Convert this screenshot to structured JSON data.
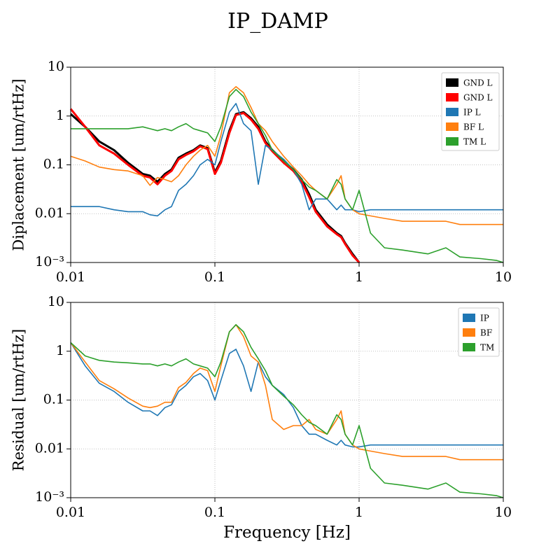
{
  "chart_data": [
    {
      "type": "line",
      "title": "IP_DAMP",
      "ylabel": "Diplacement [um/rtHz]",
      "xscale": "log",
      "yscale": "log",
      "grid": true,
      "legend": "upper right",
      "xlim": [
        0.01,
        10
      ],
      "ylim": [
        0.001,
        10
      ],
      "xticks": [
        0.01,
        0.1,
        1,
        10
      ],
      "yticks": [
        {
          "value": 0.001,
          "label": "10⁻³"
        },
        0.01,
        0.1,
        1,
        10
      ],
      "x": [
        0.01,
        0.0126,
        0.0158,
        0.02,
        0.025,
        0.0316,
        0.0355,
        0.04,
        0.045,
        0.05,
        0.056,
        0.063,
        0.071,
        0.079,
        0.089,
        0.1,
        0.11,
        0.126,
        0.14,
        0.158,
        0.178,
        0.2,
        0.224,
        0.25,
        0.3,
        0.35,
        0.4,
        0.45,
        0.5,
        0.6,
        0.7,
        0.75,
        0.8,
        0.9,
        1,
        1.2,
        1.5,
        2,
        3,
        4,
        5,
        7,
        9,
        10
      ],
      "series": [
        {
          "name": "GND L",
          "color": "#000000",
          "values": [
            1.1,
            0.6,
            0.3,
            0.2,
            0.11,
            0.065,
            0.06,
            0.045,
            0.065,
            0.08,
            0.14,
            0.17,
            0.2,
            0.25,
            0.22,
            0.07,
            0.12,
            0.5,
            1.1,
            1.2,
            0.9,
            0.6,
            0.3,
            0.2,
            0.12,
            0.08,
            0.05,
            0.025,
            0.012,
            0.006,
            0.004,
            0.0035,
            0.0025,
            0.0015,
            0.001,
            null,
            null,
            null,
            null,
            null,
            null,
            null,
            null,
            null
          ]
        },
        {
          "name": "GND L",
          "color": "#ff0000",
          "values": [
            1.4,
            0.6,
            0.25,
            0.17,
            0.1,
            0.06,
            0.055,
            0.04,
            0.06,
            0.075,
            0.13,
            0.16,
            0.19,
            0.24,
            0.21,
            0.065,
            0.11,
            0.45,
            1.05,
            1.15,
            0.85,
            0.55,
            0.28,
            0.19,
            0.11,
            0.075,
            0.045,
            0.022,
            0.011,
            0.0055,
            0.0038,
            0.0033,
            0.0024,
            0.0014,
            0.001,
            null,
            null,
            null,
            null,
            null,
            null,
            null,
            null,
            null
          ]
        },
        {
          "name": "IP L",
          "color": "#1f77b4",
          "values": [
            0.014,
            0.014,
            0.014,
            0.012,
            0.011,
            0.011,
            0.0095,
            0.009,
            0.012,
            0.014,
            0.03,
            0.04,
            0.06,
            0.1,
            0.13,
            0.1,
            0.3,
            1.2,
            1.8,
            0.7,
            0.5,
            0.04,
            0.25,
            0.2,
            0.13,
            0.08,
            0.04,
            0.012,
            0.02,
            0.02,
            0.012,
            0.015,
            0.012,
            0.012,
            0.011,
            0.012,
            0.012,
            0.012,
            0.012,
            0.012,
            0.012,
            0.012,
            0.012,
            0.012
          ]
        },
        {
          "name": "BF L",
          "color": "#ff7f0e",
          "values": [
            0.15,
            0.12,
            0.09,
            0.08,
            0.075,
            0.06,
            0.038,
            0.055,
            0.05,
            0.045,
            0.06,
            0.1,
            0.15,
            0.2,
            0.25,
            0.15,
            0.4,
            3,
            4,
            3,
            1.5,
            0.7,
            0.5,
            0.3,
            0.15,
            0.09,
            0.06,
            0.04,
            0.03,
            0.02,
            0.04,
            0.06,
            0.02,
            0.012,
            0.01,
            0.009,
            0.008,
            0.007,
            0.007,
            0.007,
            0.006,
            0.006,
            0.006,
            0.006
          ]
        },
        {
          "name": "TM L",
          "color": "#2ca02c",
          "values": [
            0.55,
            0.55,
            0.55,
            0.55,
            0.55,
            0.6,
            0.55,
            0.5,
            0.55,
            0.5,
            0.6,
            0.7,
            0.55,
            0.5,
            0.45,
            0.3,
            0.6,
            2.5,
            3.5,
            2.5,
            1.2,
            0.7,
            0.4,
            0.2,
            0.12,
            0.08,
            0.05,
            0.035,
            0.03,
            0.02,
            0.05,
            0.04,
            0.02,
            0.012,
            0.03,
            0.004,
            0.002,
            0.0018,
            0.0015,
            0.002,
            0.0013,
            0.0012,
            0.0011,
            0.001
          ]
        }
      ]
    },
    {
      "type": "line",
      "ylabel": "Residual [um/rtHz]",
      "xlabel": "Frequency [Hz]",
      "xscale": "log",
      "yscale": "log",
      "grid": true,
      "legend": "upper right",
      "xlim": [
        0.01,
        10
      ],
      "ylim": [
        0.001,
        10
      ],
      "xticks": [
        0.01,
        0.1,
        1,
        10
      ],
      "yticks": [
        {
          "value": 0.001,
          "label": "10⁻³"
        },
        0.01,
        0.1,
        1,
        10
      ],
      "x": [
        0.01,
        0.0126,
        0.0158,
        0.02,
        0.025,
        0.0316,
        0.0355,
        0.04,
        0.045,
        0.05,
        0.056,
        0.063,
        0.071,
        0.079,
        0.089,
        0.1,
        0.11,
        0.126,
        0.14,
        0.158,
        0.178,
        0.2,
        0.224,
        0.25,
        0.3,
        0.35,
        0.4,
        0.45,
        0.5,
        0.6,
        0.7,
        0.75,
        0.8,
        0.9,
        1,
        1.2,
        1.5,
        2,
        3,
        4,
        5,
        7,
        9,
        10
      ],
      "series": [
        {
          "name": "IP",
          "color": "#1f77b4",
          "values": [
            1.5,
            0.5,
            0.22,
            0.15,
            0.09,
            0.06,
            0.06,
            0.048,
            0.07,
            0.08,
            0.15,
            0.2,
            0.3,
            0.35,
            0.25,
            0.1,
            0.25,
            0.9,
            1.1,
            0.5,
            0.15,
            0.6,
            0.3,
            0.2,
            0.13,
            0.07,
            0.03,
            0.02,
            0.02,
            0.015,
            0.012,
            0.015,
            0.012,
            0.011,
            0.011,
            0.012,
            0.012,
            0.012,
            0.012,
            0.012,
            0.012,
            0.012,
            0.012,
            0.012
          ]
        },
        {
          "name": "BF",
          "color": "#ff7f0e",
          "values": [
            1.5,
            0.6,
            0.25,
            0.17,
            0.11,
            0.075,
            0.07,
            0.075,
            0.09,
            0.09,
            0.18,
            0.23,
            0.35,
            0.45,
            0.4,
            0.15,
            0.5,
            2.5,
            3.5,
            2,
            0.8,
            0.6,
            0.2,
            0.04,
            0.025,
            0.03,
            0.03,
            0.04,
            0.025,
            0.02,
            0.04,
            0.06,
            0.02,
            0.012,
            0.01,
            0.009,
            0.008,
            0.007,
            0.007,
            0.007,
            0.006,
            0.006,
            0.006,
            0.006
          ]
        },
        {
          "name": "TM",
          "color": "#2ca02c",
          "values": [
            1.5,
            0.8,
            0.65,
            0.6,
            0.58,
            0.55,
            0.55,
            0.5,
            0.55,
            0.5,
            0.6,
            0.7,
            0.55,
            0.5,
            0.45,
            0.3,
            0.6,
            2.5,
            3.5,
            2.5,
            1.2,
            0.7,
            0.4,
            0.2,
            0.12,
            0.08,
            0.05,
            0.035,
            0.03,
            0.02,
            0.05,
            0.04,
            0.02,
            0.012,
            0.03,
            0.004,
            0.002,
            0.0018,
            0.0015,
            0.002,
            0.0013,
            0.0012,
            0.0011,
            0.001
          ]
        }
      ]
    }
  ]
}
